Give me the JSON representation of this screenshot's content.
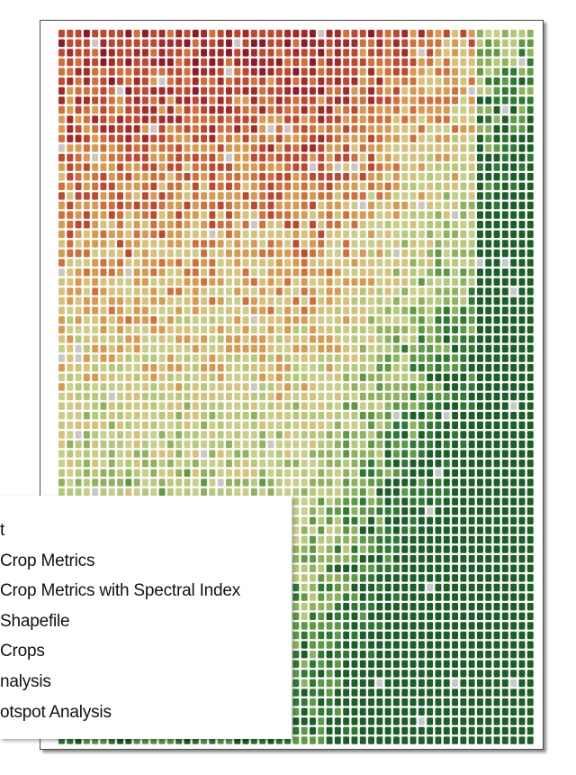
{
  "map": {
    "color_scale": [
      "#8c1a2a",
      "#a52a2a",
      "#c0482f",
      "#d2703a",
      "#d89a4e",
      "#d6c27a",
      "#c9cf8a",
      "#b6c97a",
      "#8fb35c",
      "#5e9a44",
      "#2f7a33",
      "#1b5e27"
    ],
    "empty_color": "#c8c8c8",
    "background_color": "#ffffff"
  },
  "context_menu": {
    "items": [
      {
        "label": "t",
        "offset": 0
      },
      {
        "label": "Crop Metrics",
        "offset": 0
      },
      {
        "label": "Crop Metrics with Spectral Index",
        "offset": 0
      },
      {
        "label": "Shapefile",
        "offset": 0
      },
      {
        "label": "Crops",
        "offset": 0
      },
      {
        "label": "nalysis",
        "offset": 0
      },
      {
        "label": "otspot Analysis",
        "offset": 0
      }
    ]
  }
}
